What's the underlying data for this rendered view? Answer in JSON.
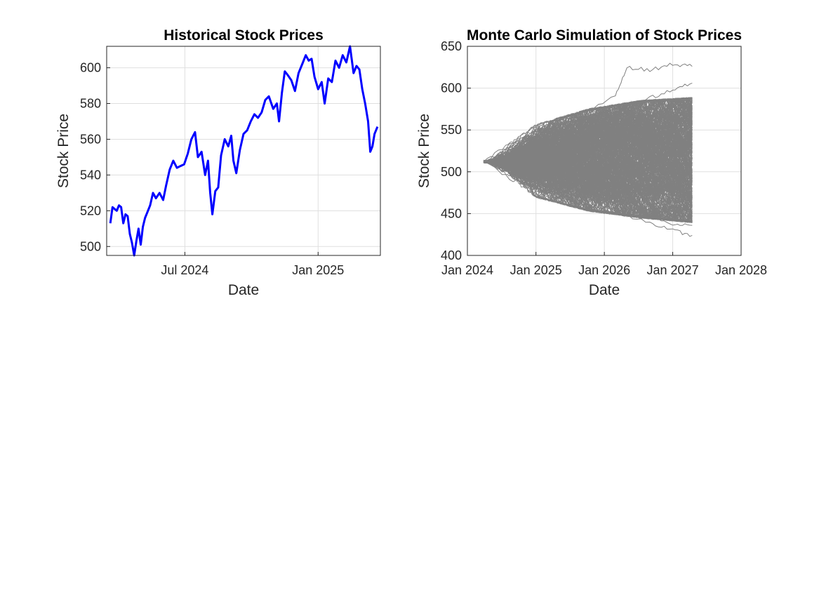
{
  "chart_data": [
    {
      "type": "line",
      "title": "Historical Stock Prices",
      "xlabel": "Date",
      "ylabel": "Stock Price",
      "xlim": [
        "2024-03-15",
        "2025-03-28"
      ],
      "ylim": [
        495,
        612
      ],
      "xticks": [
        {
          "value": "2024-07-01",
          "label": "Jul 2024"
        },
        {
          "value": "2025-01-01",
          "label": "Jan 2025"
        }
      ],
      "yticks": [
        {
          "value": 500,
          "label": "500"
        },
        {
          "value": 520,
          "label": "520"
        },
        {
          "value": 540,
          "label": "540"
        },
        {
          "value": 560,
          "label": "560"
        },
        {
          "value": 580,
          "label": "580"
        },
        {
          "value": 600,
          "label": "600"
        }
      ],
      "grid": true,
      "series": [
        {
          "color": "#0000ff",
          "x": [
            "2024-03-20",
            "2024-03-23",
            "2024-03-26",
            "2024-03-29",
            "2024-04-01",
            "2024-04-04",
            "2024-04-07",
            "2024-04-10",
            "2024-04-13",
            "2024-04-16",
            "2024-04-19",
            "2024-04-22",
            "2024-04-25",
            "2024-04-28",
            "2024-05-01",
            "2024-05-04",
            "2024-05-07",
            "2024-05-10",
            "2024-05-14",
            "2024-05-18",
            "2024-05-22",
            "2024-05-27",
            "2024-06-01",
            "2024-06-05",
            "2024-06-10",
            "2024-06-15",
            "2024-06-20",
            "2024-06-25",
            "2024-06-30",
            "2024-07-05",
            "2024-07-10",
            "2024-07-15",
            "2024-07-19",
            "2024-07-24",
            "2024-07-29",
            "2024-08-02",
            "2024-08-05",
            "2024-08-08",
            "2024-08-12",
            "2024-08-16",
            "2024-08-20",
            "2024-08-25",
            "2024-08-30",
            "2024-09-03",
            "2024-09-06",
            "2024-09-10",
            "2024-09-15",
            "2024-09-20",
            "2024-09-25",
            "2024-09-30",
            "2024-10-05",
            "2024-10-10",
            "2024-10-15",
            "2024-10-20",
            "2024-10-25",
            "2024-10-31",
            "2024-11-05",
            "2024-11-08",
            "2024-11-12",
            "2024-11-16",
            "2024-11-20",
            "2024-11-25",
            "2024-11-30",
            "2024-12-05",
            "2024-12-10",
            "2024-12-15",
            "2024-12-19",
            "2024-12-23",
            "2024-12-27",
            "2025-01-01",
            "2025-01-06",
            "2025-01-10",
            "2025-01-15",
            "2025-01-20",
            "2025-01-25",
            "2025-01-30",
            "2025-02-04",
            "2025-02-09",
            "2025-02-14",
            "2025-02-19",
            "2025-02-23",
            "2025-02-27",
            "2025-03-03",
            "2025-03-07",
            "2025-03-11",
            "2025-03-14",
            "2025-03-17",
            "2025-03-20",
            "2025-03-24"
          ],
          "y": [
            513,
            522,
            521,
            520,
            523,
            522,
            513,
            518,
            517,
            507,
            502,
            495,
            503,
            510,
            501,
            511,
            516,
            519,
            523,
            530,
            527,
            530,
            526,
            534,
            543,
            548,
            544,
            545,
            546,
            552,
            560,
            564,
            550,
            553,
            540,
            548,
            530,
            518,
            531,
            533,
            551,
            560,
            556,
            562,
            548,
            541,
            554,
            563,
            565,
            570,
            574,
            572,
            575,
            582,
            584,
            577,
            580,
            570,
            586,
            598,
            596,
            593,
            587,
            597,
            602,
            607,
            604,
            605,
            595,
            588,
            592,
            580,
            594,
            592,
            604,
            600,
            607,
            603,
            612,
            597,
            601,
            599,
            588,
            580,
            570,
            553,
            556,
            563,
            567
          ]
        }
      ]
    },
    {
      "type": "line",
      "title": "Monte Carlo Simulation of Stock Prices",
      "xlabel": "Date",
      "ylabel": "Stock Price",
      "xlim": [
        "2024-01-01",
        "2028-01-01"
      ],
      "ylim": [
        400,
        650
      ],
      "xticks": [
        {
          "value": "2024-01-01",
          "label": "Jan 2024"
        },
        {
          "value": "2025-01-01",
          "label": "Jan 2025"
        },
        {
          "value": "2026-01-01",
          "label": "Jan 2026"
        },
        {
          "value": "2027-01-01",
          "label": "Jan 2027"
        },
        {
          "value": "2028-01-01",
          "label": "Jan 2028"
        }
      ],
      "yticks": [
        {
          "value": 400,
          "label": "400"
        },
        {
          "value": 450,
          "label": "450"
        },
        {
          "value": 500,
          "label": "500"
        },
        {
          "value": 550,
          "label": "550"
        },
        {
          "value": 600,
          "label": "600"
        },
        {
          "value": 650,
          "label": "650"
        }
      ],
      "grid": true,
      "simulation": {
        "start_date": "2024-03-28",
        "end_date": "2027-04-15",
        "start_price": 512,
        "paths": 400,
        "color": "#808080",
        "band_upper": [
          [
            0,
            512
          ],
          [
            0.25,
            550
          ],
          [
            0.5,
            566
          ],
          [
            0.75,
            575
          ],
          [
            1,
            578
          ]
        ],
        "band_lower": [
          [
            0,
            512
          ],
          [
            0.25,
            476
          ],
          [
            0.5,
            462
          ],
          [
            0.75,
            455
          ],
          [
            1,
            450
          ]
        ],
        "notable_paths": [
          {
            "x": [
              "2024-03-28",
              "2024-09-01",
              "2025-03-01",
              "2025-09-01",
              "2026-03-01",
              "2026-05-01",
              "2026-09-01",
              "2027-01-01",
              "2027-04-15"
            ],
            "y": [
              512,
              530,
              548,
              568,
              592,
              624,
              622,
              628,
              626
            ]
          },
          {
            "x": [
              "2024-03-28",
              "2024-09-01",
              "2025-03-01",
              "2025-09-01",
              "2026-03-01",
              "2026-09-01",
              "2027-01-01",
              "2027-04-15"
            ],
            "y": [
              512,
              535,
              555,
              562,
              575,
              588,
              598,
              606
            ]
          },
          {
            "x": [
              "2024-03-28",
              "2024-09-01",
              "2025-03-01",
              "2025-09-01",
              "2026-03-01",
              "2026-09-01",
              "2027-01-01",
              "2027-04-15"
            ],
            "y": [
              512,
              490,
              478,
              465,
              450,
              440,
              430,
              424
            ]
          },
          {
            "x": [
              "2024-03-28",
              "2024-09-01",
              "2025-03-01",
              "2025-09-01",
              "2026-03-01",
              "2026-09-01",
              "2027-01-01",
              "2027-04-15"
            ],
            "y": [
              512,
              496,
              485,
              470,
              462,
              448,
              438,
              436
            ]
          }
        ]
      }
    }
  ]
}
